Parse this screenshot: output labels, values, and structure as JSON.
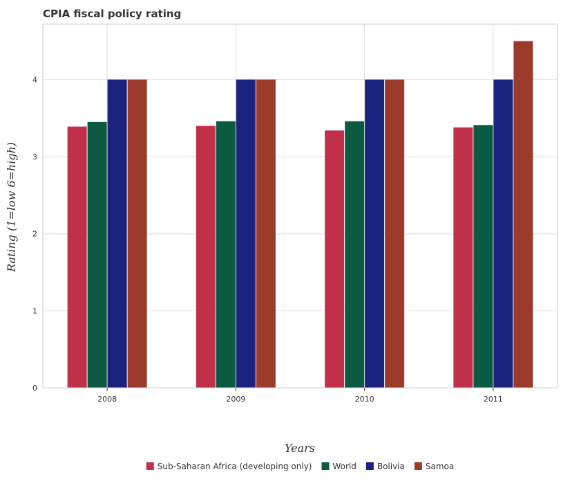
{
  "chart_data": {
    "type": "bar",
    "title": "CPIA fiscal policy rating",
    "xlabel": "Years",
    "ylabel": "Rating (1=low 6=high)",
    "categories": [
      "2008",
      "2009",
      "2010",
      "2011"
    ],
    "ylim": [
      0,
      4.72
    ],
    "yticks": [
      0,
      1,
      2,
      3,
      4
    ],
    "grid": true,
    "legend_position": "bottom",
    "series": [
      {
        "name": "Sub-Saharan Africa (developing only)",
        "color": "#c0304a",
        "values": [
          3.39,
          3.4,
          3.34,
          3.38
        ]
      },
      {
        "name": "World",
        "color": "#0d5a42",
        "values": [
          3.45,
          3.46,
          3.46,
          3.41
        ]
      },
      {
        "name": "Bolivia",
        "color": "#1a237e",
        "values": [
          4.0,
          4.0,
          4.0,
          4.0
        ]
      },
      {
        "name": "Samoa",
        "color": "#9a3b2c",
        "values": [
          4.0,
          4.0,
          4.0,
          4.5
        ]
      }
    ]
  }
}
